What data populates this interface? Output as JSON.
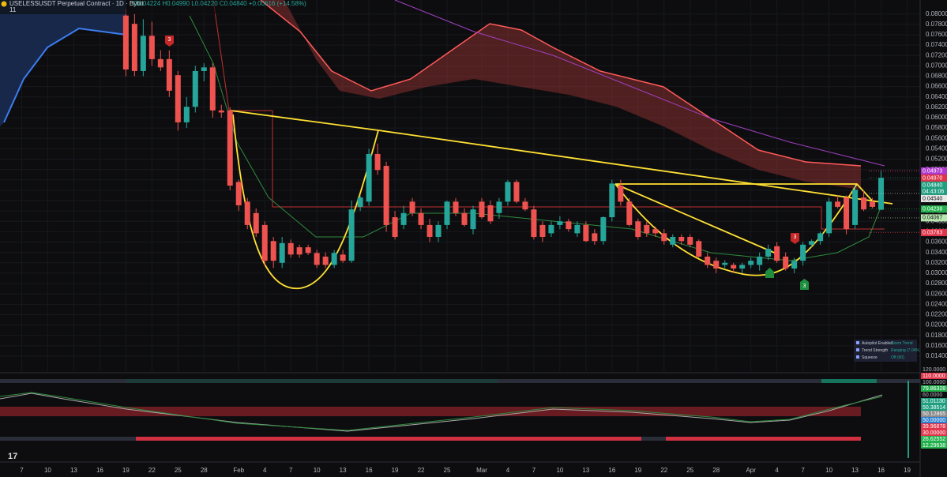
{
  "chart_data": {
    "type": "candlestick",
    "title": "USELESSUSDT Perpetual Contract · 1D · Bybit",
    "ohlc_text": "O0.04224 H0.04990 L0.04220 C0.04840 +0.00616 (+14.58%)",
    "indicator_count": "11",
    "up_color": "#26a69a",
    "down_color": "#ef5350",
    "x": [
      12,
      13,
      14,
      15,
      16,
      17,
      18,
      19,
      20,
      21,
      22,
      23,
      24,
      25,
      26,
      27,
      28,
      29,
      30,
      31,
      32,
      33,
      34,
      35,
      36,
      37,
      38,
      39,
      40,
      41,
      42,
      43,
      44,
      45,
      46,
      47,
      48,
      49,
      50,
      51,
      52,
      53,
      54,
      55,
      56,
      57,
      58,
      59,
      60,
      61,
      62,
      63,
      64,
      65,
      66,
      67,
      68,
      69,
      70,
      71,
      72,
      73,
      74,
      75,
      76,
      77,
      78,
      79,
      80,
      81,
      82,
      83,
      84,
      85,
      86,
      87,
      88,
      89,
      90,
      91,
      92,
      93,
      94,
      95,
      96,
      97,
      98,
      99
    ],
    "open": [
      0.0797,
      0.0781,
      0.069,
      0.0758,
      0.0713,
      0.0713,
      0.0682,
      0.0591,
      0.0621,
      0.069,
      0.0697,
      0.0614,
      0.0614,
      0.0476,
      0.0438,
      0.0416,
      0.0393,
      0.0362,
      0.032,
      0.0358,
      0.035,
      0.035,
      0.0339,
      0.0332,
      0.0316,
      0.0336,
      0.0324,
      0.0428,
      0.0438,
      0.053,
      0.0507,
      0.0408,
      0.0393,
      0.0438,
      0.0416,
      0.0393,
      0.037,
      0.0393,
      0.0438,
      0.0416,
      0.0385,
      0.0438,
      0.0431,
      0.0416,
      0.0438,
      0.0476,
      0.0438,
      0.0423,
      0.0393,
      0.0377,
      0.0393,
      0.04,
      0.0377,
      0.0393,
      0.0377,
      0.0362,
      0.0408,
      0.0469,
      0.0438,
      0.04,
      0.0393,
      0.0385,
      0.0377,
      0.0355,
      0.037,
      0.037,
      0.0362,
      0.0332,
      0.0324,
      0.0316,
      0.0316,
      0.0309,
      0.0316,
      0.0316,
      0.0332,
      0.0352,
      0.0332,
      0.0309,
      0.0324,
      0.0355,
      0.0362,
      0.0377,
      0.0438,
      0.0446,
      0.0393,
      0.0446,
      0.0438,
      0.04224
    ],
    "high": [
      0.081,
      0.08,
      0.079,
      0.0785,
      0.073,
      0.073,
      0.069,
      0.064,
      0.07,
      0.0705,
      0.0705,
      0.0625,
      0.062,
      0.048,
      0.0445,
      0.0425,
      0.04,
      0.037,
      0.037,
      0.0365,
      0.0355,
      0.0355,
      0.0345,
      0.034,
      0.0345,
      0.0345,
      0.044,
      0.045,
      0.054,
      0.055,
      0.0515,
      0.042,
      0.043,
      0.0445,
      0.0425,
      0.0405,
      0.04,
      0.044,
      0.0445,
      0.0425,
      0.043,
      0.0445,
      0.044,
      0.0445,
      0.048,
      0.048,
      0.0445,
      0.043,
      0.04,
      0.04,
      0.041,
      0.0405,
      0.04,
      0.04,
      0.0385,
      0.041,
      0.048,
      0.048,
      0.0445,
      0.0405,
      0.04,
      0.039,
      0.0385,
      0.0375,
      0.0375,
      0.0375,
      0.0365,
      0.034,
      0.033,
      0.0325,
      0.032,
      0.032,
      0.033,
      0.034,
      0.0355,
      0.036,
      0.034,
      0.033,
      0.036,
      0.0365,
      0.038,
      0.0445,
      0.045,
      0.045,
      0.047,
      0.046,
      0.0445,
      0.0499
    ],
    "low": [
      0.068,
      0.068,
      0.068,
      0.07,
      0.069,
      0.064,
      0.0575,
      0.058,
      0.061,
      0.067,
      0.06,
      0.06,
      0.046,
      0.042,
      0.0385,
      0.037,
      0.0315,
      0.031,
      0.031,
      0.033,
      0.033,
      0.0335,
      0.031,
      0.031,
      0.031,
      0.032,
      0.032,
      0.042,
      0.043,
      0.049,
      0.038,
      0.0365,
      0.0385,
      0.041,
      0.0385,
      0.036,
      0.036,
      0.0385,
      0.041,
      0.039,
      0.0375,
      0.0405,
      0.0395,
      0.0405,
      0.043,
      0.0435,
      0.042,
      0.0365,
      0.036,
      0.037,
      0.0385,
      0.038,
      0.037,
      0.036,
      0.0355,
      0.0355,
      0.04,
      0.043,
      0.039,
      0.0365,
      0.037,
      0.037,
      0.0355,
      0.035,
      0.0355,
      0.035,
      0.033,
      0.031,
      0.03,
      0.031,
      0.03,
      0.03,
      0.031,
      0.0305,
      0.0325,
      0.032,
      0.0305,
      0.03,
      0.0315,
      0.035,
      0.0355,
      0.037,
      0.0425,
      0.0375,
      0.0385,
      0.042,
      0.0425,
      0.0422
    ],
    "close": [
      0.0693,
      0.069,
      0.0758,
      0.0713,
      0.0697,
      0.0652,
      0.0591,
      0.0621,
      0.069,
      0.0697,
      0.0614,
      0.061,
      0.0469,
      0.0431,
      0.0393,
      0.0377,
      0.0324,
      0.0324,
      0.0358,
      0.0336,
      0.0336,
      0.0339,
      0.0316,
      0.0316,
      0.0339,
      0.0324,
      0.0423,
      0.0446,
      0.053,
      0.0499,
      0.0393,
      0.037,
      0.0416,
      0.0416,
      0.0393,
      0.037,
      0.0393,
      0.0438,
      0.0416,
      0.0393,
      0.0423,
      0.0408,
      0.04,
      0.0438,
      0.0476,
      0.0438,
      0.0423,
      0.037,
      0.037,
      0.0393,
      0.04,
      0.0385,
      0.0393,
      0.0362,
      0.0362,
      0.0408,
      0.0473,
      0.0438,
      0.0393,
      0.037,
      0.0377,
      0.0377,
      0.0362,
      0.037,
      0.0362,
      0.0355,
      0.0332,
      0.0316,
      0.0309,
      0.032,
      0.0309,
      0.0316,
      0.0324,
      0.0332,
      0.0347,
      0.0324,
      0.0309,
      0.0324,
      0.0355,
      0.0362,
      0.0377,
      0.0438,
      0.0428,
      0.0385,
      0.0461,
      0.0423,
      0.0428,
      0.0484
    ],
    "xlim": [
      -2.5,
      103.5
    ],
    "ylim": [
      0.0111,
      0.0827
    ],
    "xticks": [
      {
        "value": 0,
        "label": "7"
      },
      {
        "value": 3,
        "label": "10"
      },
      {
        "value": 6,
        "label": "13"
      },
      {
        "value": 9,
        "label": "16"
      },
      {
        "value": 12,
        "label": "19"
      },
      {
        "value": 15,
        "label": "22"
      },
      {
        "value": 18,
        "label": "25"
      },
      {
        "value": 21,
        "label": "28"
      },
      {
        "value": 25,
        "label": "Feb"
      },
      {
        "value": 28,
        "label": "4"
      },
      {
        "value": 31,
        "label": "7"
      },
      {
        "value": 34,
        "label": "10"
      },
      {
        "value": 37,
        "label": "13"
      },
      {
        "value": 40,
        "label": "16"
      },
      {
        "value": 43,
        "label": "19"
      },
      {
        "value": 46,
        "label": "22"
      },
      {
        "value": 49,
        "label": "25"
      },
      {
        "value": 53,
        "label": "Mar"
      },
      {
        "value": 56,
        "label": "4"
      },
      {
        "value": 59,
        "label": "7"
      },
      {
        "value": 62,
        "label": "10"
      },
      {
        "value": 65,
        "label": "13"
      },
      {
        "value": 68,
        "label": "16"
      },
      {
        "value": 71,
        "label": "19"
      },
      {
        "value": 74,
        "label": "22"
      },
      {
        "value": 77,
        "label": "25"
      },
      {
        "value": 80,
        "label": "28"
      },
      {
        "value": 84,
        "label": "Apr"
      },
      {
        "value": 87,
        "label": "4"
      },
      {
        "value": 90,
        "label": "7"
      },
      {
        "value": 93,
        "label": "10"
      },
      {
        "value": 96,
        "label": "13"
      },
      {
        "value": 99,
        "label": "16"
      },
      {
        "value": 102,
        "label": "19"
      }
    ],
    "yticks": [
      {
        "value": 0.014,
        "label": "0.01400"
      },
      {
        "value": 0.016,
        "label": "0.01600"
      },
      {
        "value": 0.018,
        "label": "0.01800"
      },
      {
        "value": 0.02,
        "label": "0.02000"
      },
      {
        "value": 0.022,
        "label": "0.02200"
      },
      {
        "value": 0.024,
        "label": "0.02400"
      },
      {
        "value": 0.026,
        "label": "0.02600"
      },
      {
        "value": 0.028,
        "label": "0.02800"
      },
      {
        "value": 0.03,
        "label": "0.03000"
      },
      {
        "value": 0.032,
        "label": "0.03200"
      },
      {
        "value": 0.034,
        "label": "0.03400"
      },
      {
        "value": 0.036,
        "label": "0.03600"
      },
      {
        "value": 0.038,
        "label": "0.03800"
      },
      {
        "value": 0.04,
        "label": "0.04000"
      },
      {
        "value": 0.042,
        "label": "0.04200"
      },
      {
        "value": 0.044,
        "label": "0.04400"
      },
      {
        "value": 0.046,
        "label": "0.04600"
      },
      {
        "value": 0.048,
        "label": "0.04800"
      },
      {
        "value": 0.05,
        "label": "0.05000"
      },
      {
        "value": 0.052,
        "label": "0.05200"
      },
      {
        "value": 0.054,
        "label": "0.05400"
      },
      {
        "value": 0.056,
        "label": "0.05600"
      },
      {
        "value": 0.058,
        "label": "0.05800"
      },
      {
        "value": 0.06,
        "label": "0.06000"
      },
      {
        "value": 0.062,
        "label": "0.06200"
      },
      {
        "value": 0.064,
        "label": "0.06400"
      },
      {
        "value": 0.066,
        "label": "0.06600"
      },
      {
        "value": 0.068,
        "label": "0.06800"
      },
      {
        "value": 0.07,
        "label": "0.07000"
      },
      {
        "value": 0.072,
        "label": "0.07200"
      },
      {
        "value": 0.074,
        "label": "0.07400"
      },
      {
        "value": 0.076,
        "label": "0.07600"
      },
      {
        "value": 0.078,
        "label": "0.07800"
      },
      {
        "value": 0.08,
        "label": "0.08000"
      }
    ],
    "price_labels": [
      {
        "value": 0.0497,
        "label": "0.04970",
        "color": "#e0344a"
      },
      {
        "value": 0.04973,
        "label": "0.04973",
        "color": "#b03ad0"
      },
      {
        "value": 0.0484,
        "label": "0.04840",
        "color": "#1f9e80",
        "sublabel": "04:43:06"
      },
      {
        "value": 0.0454,
        "label": "0.04540",
        "color": "#e8e8e8"
      },
      {
        "value": 0.04238,
        "label": "0.04238",
        "color": "#22b14c"
      },
      {
        "value": 0.04067,
        "label": "0.04067",
        "color": "#b8e8b0"
      },
      {
        "value": 0.03783,
        "label": "0.03783",
        "color": "#e0344a"
      }
    ],
    "markers": [
      "3",
      "3",
      "3"
    ],
    "oscillator_labels": [
      {
        "value": 120,
        "label": "120.0000",
        "color": ""
      },
      {
        "value": 110,
        "label": "110.0000",
        "color": "#e0344a"
      },
      {
        "value": 100,
        "label": "100.0000",
        "color": ""
      },
      {
        "value": 79.86328,
        "label": "79.86328",
        "color": "#22b14c"
      },
      {
        "value": 60,
        "label": "60.0000",
        "color": ""
      },
      {
        "value": 51.0113,
        "label": "51.01130",
        "color": "#1f9e80"
      },
      {
        "value": 50.38514,
        "label": "50.38514",
        "color": "#1f9e80"
      },
      {
        "value": 50.12865,
        "label": "50.12865",
        "color": "#888888"
      },
      {
        "value": 50,
        "label": "50.00000",
        "color": "#2a7fd0"
      },
      {
        "value": 39.96878,
        "label": "39.96878",
        "color": "#e0344a"
      },
      {
        "value": 30,
        "label": "30.00000",
        "color": "#e0344a"
      },
      {
        "value": 26.62552,
        "label": "26.62552",
        "color": "#22b14c"
      },
      {
        "value": 12.29638,
        "label": "12.29638",
        "color": "#22b14c"
      }
    ],
    "info_rows": [
      [
        "Autopilot Enabled",
        "Storm Trend"
      ],
      [
        "Trend Strength",
        "Ranging (7.04%)"
      ],
      [
        "Squeeze",
        "Off (60)"
      ]
    ]
  }
}
